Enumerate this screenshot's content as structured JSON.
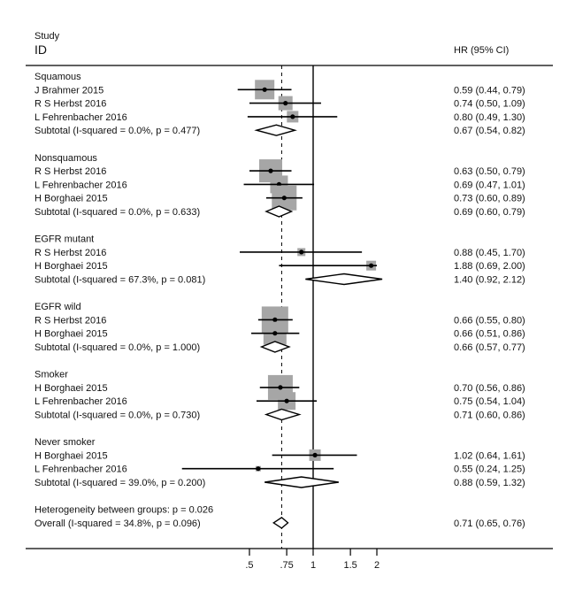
{
  "chart_data": {
    "type": "forest",
    "title": "",
    "header": {
      "study_line1": "Study",
      "study_line2": "ID",
      "effect": "HR (95% CI)"
    },
    "xscale": "log",
    "xticks": [
      0.5,
      0.75,
      1,
      1.5,
      2
    ],
    "xtick_labels": [
      ".5",
      ".75",
      "1",
      "1.5",
      "2"
    ],
    "null_line": 1,
    "overall_line": 0.71,
    "groups": [
      {
        "name": "Squamous",
        "studies": [
          {
            "label": "J Brahmer 2015",
            "hr": 0.59,
            "lo": 0.44,
            "hi": 0.79,
            "text": "0.59 (0.44, 0.79)",
            "weight": 22
          },
          {
            "label": "R S Herbst 2016",
            "hr": 0.74,
            "lo": 0.5,
            "hi": 1.09,
            "text": "0.74 (0.50, 1.09)",
            "weight": 16
          },
          {
            "label": "L Fehrenbacher 2016",
            "hr": 0.8,
            "lo": 0.49,
            "hi": 1.3,
            "text": "0.80 (0.49, 1.30)",
            "weight": 13
          }
        ],
        "subtotal": {
          "label": "Subtotal  (I-squared = 0.0%, p = 0.477)",
          "hr": 0.67,
          "lo": 0.54,
          "hi": 0.82,
          "text": "0.67 (0.54, 0.82)"
        }
      },
      {
        "name": "Nonsquamous",
        "studies": [
          {
            "label": "R S Herbst 2016",
            "hr": 0.63,
            "lo": 0.5,
            "hi": 0.79,
            "text": "0.63 (0.50, 0.79)",
            "weight": 26
          },
          {
            "label": "L Fehrenbacher 2016",
            "hr": 0.69,
            "lo": 0.47,
            "hi": 1.01,
            "text": "0.69 (0.47, 1.01)",
            "weight": 20
          },
          {
            "label": "H Borghaei 2015",
            "hr": 0.73,
            "lo": 0.6,
            "hi": 0.89,
            "text": "0.73 (0.60, 0.89)",
            "weight": 28
          }
        ],
        "subtotal": {
          "label": "Subtotal  (I-squared = 0.0%, p = 0.633)",
          "hr": 0.69,
          "lo": 0.6,
          "hi": 0.79,
          "text": "0.69 (0.60, 0.79)"
        }
      },
      {
        "name": "EGFR mutant",
        "studies": [
          {
            "label": "R S Herbst 2016",
            "hr": 0.88,
            "lo": 0.45,
            "hi": 1.7,
            "text": "0.88 (0.45, 1.70)",
            "weight": 9
          },
          {
            "label": "H Borghaei 2015",
            "hr": 1.88,
            "lo": 0.69,
            "hi": 2.0,
            "text": "1.88 (0.69, 2.00)",
            "weight": 11
          }
        ],
        "subtotal": {
          "label": "Subtotal  (I-squared = 67.3%, p = 0.081)",
          "hr": 1.4,
          "lo": 0.92,
          "hi": 2.12,
          "text": "1.40 (0.92, 2.12)"
        }
      },
      {
        "name": "EGFR wild",
        "studies": [
          {
            "label": "R S Herbst 2016",
            "hr": 0.66,
            "lo": 0.55,
            "hi": 0.8,
            "text": "0.66 (0.55, 0.80)",
            "weight": 30
          },
          {
            "label": "H Borghaei 2015",
            "hr": 0.66,
            "lo": 0.51,
            "hi": 0.86,
            "text": "0.66 (0.51, 0.86)",
            "weight": 26
          }
        ],
        "subtotal": {
          "label": "Subtotal  (I-squared = 0.0%, p = 1.000)",
          "hr": 0.66,
          "lo": 0.57,
          "hi": 0.77,
          "text": "0.66 (0.57, 0.77)"
        }
      },
      {
        "name": "Smoker",
        "studies": [
          {
            "label": "H Borghaei 2015",
            "hr": 0.7,
            "lo": 0.56,
            "hi": 0.86,
            "text": "0.70 (0.56, 0.86)",
            "weight": 28
          },
          {
            "label": "L Fehrenbacher 2016",
            "hr": 0.75,
            "lo": 0.54,
            "hi": 1.04,
            "text": "0.75 (0.54, 1.04)",
            "weight": 20
          }
        ],
        "subtotal": {
          "label": "Subtotal  (I-squared = 0.0%, p = 0.730)",
          "hr": 0.71,
          "lo": 0.6,
          "hi": 0.86,
          "text": "0.71 (0.60, 0.86)"
        }
      },
      {
        "name": "Never smoker",
        "studies": [
          {
            "label": "H Borghaei 2015",
            "hr": 1.02,
            "lo": 0.64,
            "hi": 1.61,
            "text": "1.02 (0.64, 1.61)",
            "weight": 13
          },
          {
            "label": "L Fehrenbacher 2016",
            "hr": 0.55,
            "lo": 0.24,
            "hi": 1.25,
            "text": "0.55 (0.24, 1.25)",
            "weight": 6
          }
        ],
        "subtotal": {
          "label": "Subtotal  (I-squared = 39.0%, p = 0.200)",
          "hr": 0.88,
          "lo": 0.59,
          "hi": 1.32,
          "text": "0.88 (0.59, 1.32)"
        }
      }
    ],
    "heterogeneity": "Heterogeneity between groups: p = 0.026",
    "overall": {
      "label": "Overall  (I-squared = 34.8%, p = 0.096)",
      "hr": 0.71,
      "lo": 0.65,
      "hi": 0.76,
      "text": "0.71 (0.65, 0.76)"
    },
    "colors": {
      "box": "#a6a6a6",
      "line": "#000000",
      "text": "#111111"
    }
  }
}
